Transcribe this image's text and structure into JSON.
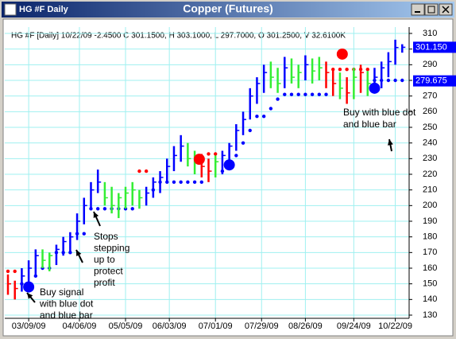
{
  "window": {
    "title": "HG #F Daily"
  },
  "chart_data": {
    "type": "ohlc",
    "title": "Copper (Futures)",
    "info": "HG #F [Daily] 10/22/09 -2.4500 C 301.1500, H 303.1000, L 297.7000, O 301.2500, V 32.6100K",
    "x": [
      0,
      3,
      6,
      9,
      12,
      15,
      18,
      21,
      24,
      27,
      30,
      33,
      36,
      39,
      42,
      45,
      48,
      51,
      54,
      57,
      60,
      63,
      66,
      69,
      72,
      75,
      78,
      81,
      84,
      87,
      90,
      93,
      96,
      99,
      102,
      105,
      108,
      111,
      114,
      117,
      120,
      123,
      126,
      129,
      132,
      135,
      138,
      141,
      144,
      147,
      150,
      153,
      156,
      159,
      162,
      165,
      168,
      171
    ],
    "high": [
      156,
      152,
      160,
      165,
      172,
      172,
      170,
      175,
      180,
      183,
      195,
      205,
      215,
      223,
      215,
      212,
      208,
      212,
      215,
      210,
      212,
      218,
      222,
      230,
      238,
      245,
      240,
      235,
      233,
      230,
      232,
      235,
      240,
      252,
      260,
      275,
      282,
      290,
      292,
      288,
      295,
      294,
      290,
      296,
      294,
      295,
      292,
      287,
      285,
      282,
      288,
      290,
      286,
      288,
      292,
      298,
      306,
      303.1
    ],
    "low": [
      143,
      140,
      145,
      148,
      155,
      160,
      158,
      162,
      168,
      170,
      178,
      188,
      198,
      208,
      200,
      195,
      192,
      198,
      200,
      198,
      200,
      205,
      208,
      215,
      222,
      228,
      225,
      220,
      218,
      215,
      218,
      220,
      224,
      235,
      245,
      255,
      265,
      272,
      275,
      272,
      275,
      278,
      275,
      280,
      278,
      280,
      275,
      270,
      268,
      265,
      268,
      272,
      270,
      272,
      275,
      282,
      290,
      297.7
    ],
    "close": [
      150,
      147,
      155,
      160,
      168,
      165,
      168,
      172,
      177,
      180,
      190,
      200,
      210,
      215,
      205,
      200,
      205,
      208,
      210,
      205,
      208,
      215,
      218,
      225,
      232,
      238,
      230,
      228,
      225,
      222,
      228,
      232,
      238,
      248,
      255,
      270,
      278,
      285,
      282,
      278,
      288,
      282,
      285,
      290,
      286,
      288,
      285,
      278,
      275,
      272,
      282,
      285,
      278,
      282,
      288,
      292,
      301,
      301.15
    ],
    "colors": [
      "#ff0000",
      "#ff0000",
      "#0000ff",
      "#0000ff",
      "#0000ff",
      "#33ee33",
      "#33ee33",
      "#0000ff",
      "#0000ff",
      "#0000ff",
      "#0000ff",
      "#0000ff",
      "#0000ff",
      "#0000ff",
      "#33ee33",
      "#33ee33",
      "#33ee33",
      "#33ee33",
      "#33ee33",
      "#33ee33",
      "#0000ff",
      "#0000ff",
      "#0000ff",
      "#0000ff",
      "#0000ff",
      "#0000ff",
      "#33ee33",
      "#33ee33",
      "#ff0000",
      "#ff0000",
      "#33ee33",
      "#0000ff",
      "#0000ff",
      "#0000ff",
      "#0000ff",
      "#0000ff",
      "#0000ff",
      "#0000ff",
      "#33ee33",
      "#33ee33",
      "#0000ff",
      "#33ee33",
      "#33ee33",
      "#0000ff",
      "#33ee33",
      "#33ee33",
      "#ff0000",
      "#ff0000",
      "#33ee33",
      "#ff0000",
      "#33ee33",
      "#ff0000",
      "#33ee33",
      "#0000ff",
      "#0000ff",
      "#0000ff",
      "#0000ff",
      "#0000ff"
    ],
    "stop_lower": {
      "color": "#0000ff",
      "values": [
        null,
        null,
        150,
        150,
        155,
        160,
        160,
        170,
        170,
        170,
        182,
        182,
        198,
        198,
        198,
        198,
        198,
        198,
        198,
        null,
        null,
        210,
        215,
        215,
        215,
        215,
        215,
        215,
        215,
        null,
        null,
        222,
        225,
        232,
        240,
        248,
        257,
        257,
        262,
        268,
        271,
        271,
        271,
        271,
        271,
        271,
        271,
        null,
        null,
        null,
        null,
        null,
        null,
        280,
        280,
        280,
        280,
        280
      ]
    },
    "stop_upper": {
      "color": "#ff0000",
      "values": [
        158,
        158,
        null,
        null,
        null,
        null,
        null,
        null,
        null,
        null,
        null,
        null,
        null,
        null,
        null,
        null,
        null,
        null,
        null,
        222,
        222,
        null,
        null,
        null,
        null,
        null,
        null,
        null,
        null,
        233,
        233,
        null,
        null,
        null,
        null,
        null,
        null,
        null,
        null,
        null,
        null,
        null,
        null,
        null,
        null,
        null,
        null,
        287,
        287,
        287,
        287,
        287,
        287,
        null,
        null,
        null,
        null,
        null
      ]
    },
    "signals": [
      {
        "x": 9,
        "value": 148,
        "color": "#0000ff"
      },
      {
        "x": 83,
        "value": 229.6,
        "color": "#ff0000"
      },
      {
        "x": 96,
        "value": 226,
        "color": "#0000ff"
      },
      {
        "x": 145,
        "value": 296.8,
        "color": "#ff0000"
      },
      {
        "x": 159,
        "value": 275,
        "color": "#0000ff"
      }
    ],
    "xlim": [
      0,
      174
    ],
    "xticks": [
      {
        "value": 9,
        "label": "03/09/09"
      },
      {
        "value": 31,
        "label": "04/06/09"
      },
      {
        "value": 51,
        "label": "05/05/09"
      },
      {
        "value": 70,
        "label": "06/03/09"
      },
      {
        "value": 90,
        "label": "07/01/09"
      },
      {
        "value": 110,
        "label": "07/29/09"
      },
      {
        "value": 129,
        "label": "08/26/09"
      },
      {
        "value": 150,
        "label": "09/24/09"
      },
      {
        "value": 168,
        "label": "10/22/09"
      }
    ],
    "ylim": [
      130,
      310
    ],
    "yticks": [
      130,
      140,
      150,
      160,
      170,
      180,
      190,
      200,
      210,
      220,
      230,
      240,
      250,
      260,
      270,
      280,
      290,
      300,
      310
    ],
    "grid": true,
    "grid_color": "#9ff0f0",
    "price_labels": [
      {
        "value": 301.15,
        "label": "301.150",
        "color": "#0000ff"
      },
      {
        "value": 279.675,
        "label": "279.675",
        "color": "#0000ff"
      }
    ],
    "annotations": [
      {
        "lines": [
          "Buy signal",
          "with blue dot",
          "and blue bar"
        ]
      },
      {
        "lines": [
          "Stops",
          "stepping",
          "up to",
          "protect",
          "profit"
        ]
      },
      {
        "lines": [
          "Buy with blue dot",
          "and blue bar"
        ]
      }
    ]
  }
}
